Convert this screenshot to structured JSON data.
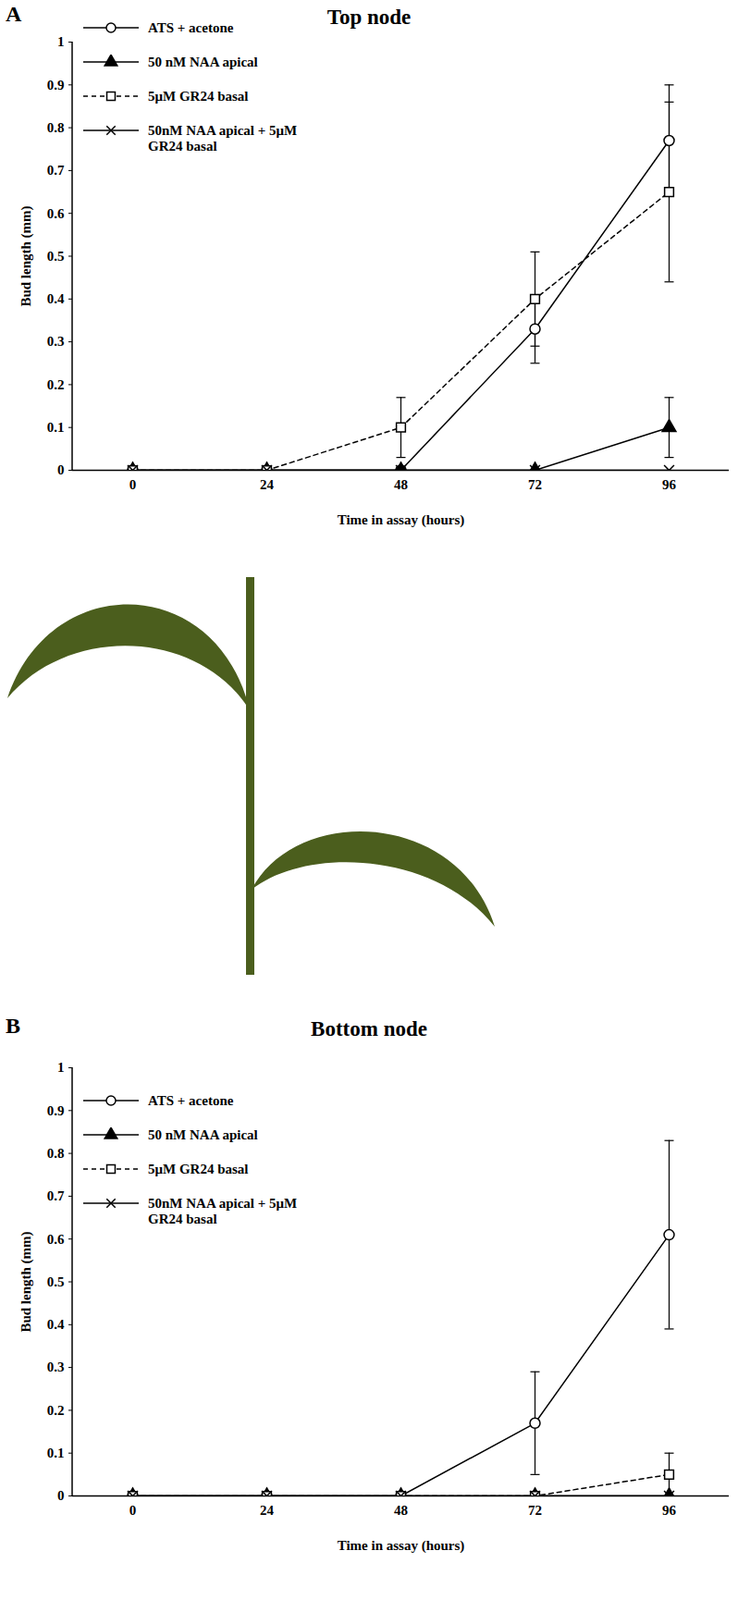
{
  "chart_data": [
    {
      "type": "line",
      "panel_label": "A",
      "title": "Top node",
      "x_label": "Time in assay (hours)",
      "y_label": "Bud length (mm)",
      "categories": [
        "0",
        "24",
        "48",
        "72",
        "96"
      ],
      "ylim": [
        0,
        1
      ],
      "yticks": [
        0,
        0.1,
        0.2,
        0.3,
        0.4,
        0.5,
        0.6,
        0.7,
        0.8,
        0.9,
        1
      ],
      "legend": "top-left",
      "series": [
        {
          "name": "ATS + acetone",
          "color": "#000000",
          "marker": "circle-open",
          "line_style": "solid",
          "values": [
            0,
            0,
            0,
            0.33,
            0.77
          ],
          "errors": [
            null,
            null,
            null,
            0.08,
            0.13
          ]
        },
        {
          "name": "50 nM NAA apical",
          "color": "#000000",
          "marker": "triangle",
          "line_style": "solid",
          "values": [
            0,
            0,
            0,
            0,
            0.1
          ],
          "errors": [
            null,
            null,
            null,
            null,
            0.07
          ]
        },
        {
          "name": "5μM GR24 basal",
          "color": "#000000",
          "marker": "square-open",
          "line_style": "dashed",
          "values": [
            0,
            0,
            0.1,
            0.4,
            0.65
          ],
          "errors": [
            null,
            null,
            0.07,
            0.11,
            0.21
          ]
        },
        {
          "name": "50nM NAA apical + 5μM GR24 basal",
          "color": "#000000",
          "marker": "cross",
          "line_style": "solid",
          "values": [
            0,
            0,
            0,
            0,
            0
          ],
          "errors": [
            null,
            null,
            null,
            null,
            null
          ]
        }
      ]
    },
    {
      "type": "line",
      "panel_label": "B",
      "title": "Bottom node",
      "x_label": "Time in assay (hours)",
      "y_label": "Bud length (mm)",
      "categories": [
        "0",
        "24",
        "48",
        "72",
        "96"
      ],
      "ylim": [
        0,
        1
      ],
      "yticks": [
        0,
        0.1,
        0.2,
        0.3,
        0.4,
        0.5,
        0.6,
        0.7,
        0.8,
        0.9,
        1
      ],
      "legend": "top-left",
      "series": [
        {
          "name": "ATS + acetone",
          "color": "#000000",
          "marker": "circle-open",
          "line_style": "solid",
          "values": [
            0,
            0,
            0,
            0.17,
            0.61
          ],
          "errors": [
            null,
            null,
            null,
            0.12,
            0.22
          ]
        },
        {
          "name": "50 nM NAA apical",
          "color": "#000000",
          "marker": "triangle",
          "line_style": "solid",
          "values": [
            0,
            0,
            0,
            0,
            0
          ],
          "errors": [
            null,
            null,
            null,
            null,
            null
          ]
        },
        {
          "name": "5μM GR24 basal",
          "color": "#000000",
          "marker": "square-open",
          "line_style": "dashed",
          "values": [
            0,
            0,
            0,
            0,
            0.05
          ],
          "errors": [
            null,
            null,
            null,
            null,
            0.05
          ]
        },
        {
          "name": "50nM NAA apical + 5μM GR24 basal",
          "color": "#000000",
          "marker": "cross",
          "line_style": "solid",
          "values": [
            0,
            0,
            0,
            0,
            0
          ],
          "errors": [
            null,
            null,
            null,
            null,
            null
          ]
        }
      ]
    }
  ]
}
